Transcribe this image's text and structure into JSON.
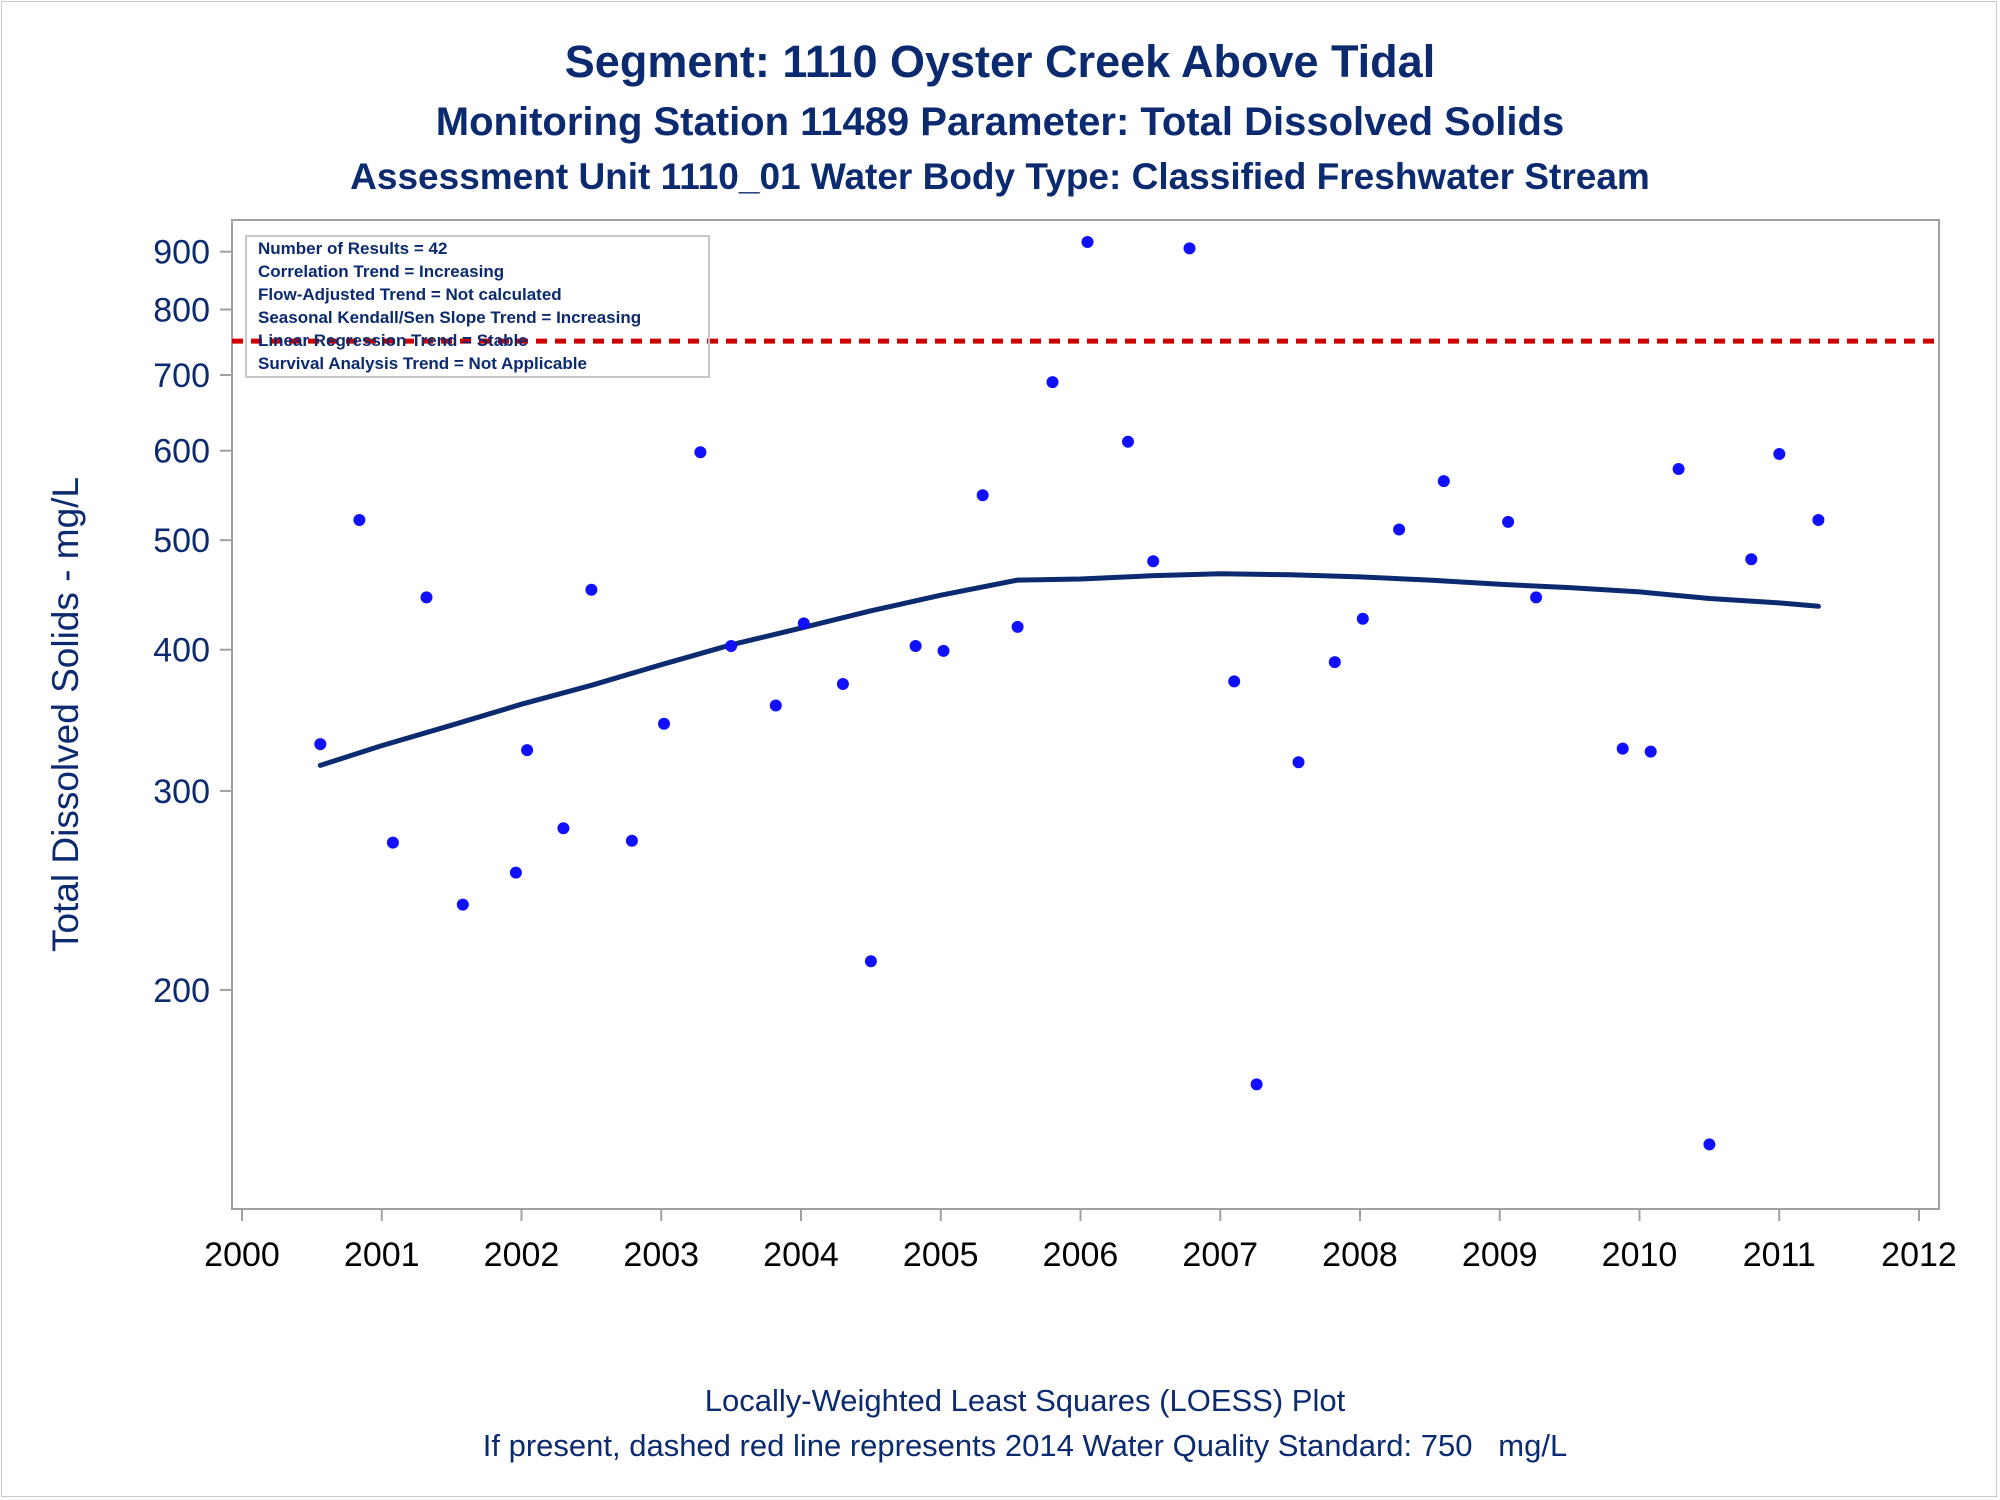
{
  "chart_data": {
    "type": "scatter",
    "title": "Segment: 1110  Oyster Creek Above Tidal",
    "subtitle": "Monitoring Station 11489 Parameter: Total Dissolved Solids",
    "subtitle2": "Assessment Unit 1110_01   Water Body Type: Classified Freshwater Stream",
    "ylabel": "Total Dissolved Solids - mg/L",
    "xlabel": "",
    "y_scale": "log",
    "xlim": [
      2000,
      2012
    ],
    "ylim": [
      128,
      960
    ],
    "x_ticks": [
      "2000",
      "2001",
      "2002",
      "2003",
      "2004",
      "2005",
      "2006",
      "2007",
      "2008",
      "2009",
      "2010",
      "2011",
      "2012"
    ],
    "y_ticks": [
      "200",
      "300",
      "400",
      "500",
      "600",
      "700",
      "800",
      "900"
    ],
    "legend_placement": "top-left",
    "grid": false,
    "stats_box": [
      "Number of Results = 42",
      "Correlation Trend = Increasing",
      "Flow-Adjusted Trend = Not calculated",
      "Seasonal Kendall/Sen Slope Trend = Increasing",
      "Linear Regression Trend = Stable",
      "Survival Analysis Trend = Not Applicable"
    ],
    "reference_line": {
      "value": 750,
      "style": "dashed",
      "color": "#cc0000"
    },
    "points": [
      {
        "x": 2000.56,
        "y": 330
      },
      {
        "x": 2000.84,
        "y": 521
      },
      {
        "x": 2001.08,
        "y": 270
      },
      {
        "x": 2001.32,
        "y": 445
      },
      {
        "x": 2001.58,
        "y": 238
      },
      {
        "x": 2001.96,
        "y": 254
      },
      {
        "x": 2002.04,
        "y": 326
      },
      {
        "x": 2002.3,
        "y": 278
      },
      {
        "x": 2002.5,
        "y": 452
      },
      {
        "x": 2002.79,
        "y": 271
      },
      {
        "x": 2003.02,
        "y": 344
      },
      {
        "x": 2003.28,
        "y": 598
      },
      {
        "x": 2003.5,
        "y": 403
      },
      {
        "x": 2003.82,
        "y": 357
      },
      {
        "x": 2004.02,
        "y": 422
      },
      {
        "x": 2004.3,
        "y": 373
      },
      {
        "x": 2004.5,
        "y": 212
      },
      {
        "x": 2004.82,
        "y": 403
      },
      {
        "x": 2005.02,
        "y": 399
      },
      {
        "x": 2005.3,
        "y": 548
      },
      {
        "x": 2005.55,
        "y": 419
      },
      {
        "x": 2005.8,
        "y": 690
      },
      {
        "x": 2006.05,
        "y": 918
      },
      {
        "x": 2006.34,
        "y": 611
      },
      {
        "x": 2006.52,
        "y": 479
      },
      {
        "x": 2006.78,
        "y": 906
      },
      {
        "x": 2007.1,
        "y": 375
      },
      {
        "x": 2007.26,
        "y": 165
      },
      {
        "x": 2007.56,
        "y": 318
      },
      {
        "x": 2007.82,
        "y": 390
      },
      {
        "x": 2008.02,
        "y": 426
      },
      {
        "x": 2008.28,
        "y": 511
      },
      {
        "x": 2008.6,
        "y": 564
      },
      {
        "x": 2009.06,
        "y": 519
      },
      {
        "x": 2009.26,
        "y": 445
      },
      {
        "x": 2009.88,
        "y": 327
      },
      {
        "x": 2010.08,
        "y": 325
      },
      {
        "x": 2010.28,
        "y": 578
      },
      {
        "x": 2010.5,
        "y": 146
      },
      {
        "x": 2010.8,
        "y": 481
      },
      {
        "x": 2011.0,
        "y": 596
      },
      {
        "x": 2011.28,
        "y": 521
      }
    ],
    "loess": [
      {
        "x": 2000.56,
        "y": 316
      },
      {
        "x": 2001.0,
        "y": 329
      },
      {
        "x": 2001.5,
        "y": 343
      },
      {
        "x": 2002.0,
        "y": 358
      },
      {
        "x": 2002.5,
        "y": 372
      },
      {
        "x": 2003.0,
        "y": 388
      },
      {
        "x": 2003.5,
        "y": 404
      },
      {
        "x": 2004.0,
        "y": 418
      },
      {
        "x": 2004.5,
        "y": 433
      },
      {
        "x": 2005.0,
        "y": 447
      },
      {
        "x": 2005.55,
        "y": 461
      },
      {
        "x": 2006.0,
        "y": 462
      },
      {
        "x": 2006.5,
        "y": 465
      },
      {
        "x": 2007.0,
        "y": 467
      },
      {
        "x": 2007.5,
        "y": 466
      },
      {
        "x": 2008.0,
        "y": 464
      },
      {
        "x": 2008.5,
        "y": 461
      },
      {
        "x": 2009.0,
        "y": 457
      },
      {
        "x": 2009.5,
        "y": 454
      },
      {
        "x": 2010.0,
        "y": 450
      },
      {
        "x": 2010.5,
        "y": 444
      },
      {
        "x": 2011.0,
        "y": 440
      },
      {
        "x": 2011.28,
        "y": 437
      }
    ],
    "colors": {
      "points": "#1010ff",
      "loess": "#0b2a70",
      "text": "#0b2a70",
      "axis": "#a0a0a0",
      "standard": "#cc0000"
    }
  },
  "footer": {
    "line1": "Locally-Weighted Least Squares (LOESS) Plot",
    "line2": "If present, dashed red line represents 2014 Water Quality Standard: 750   mg/L"
  }
}
